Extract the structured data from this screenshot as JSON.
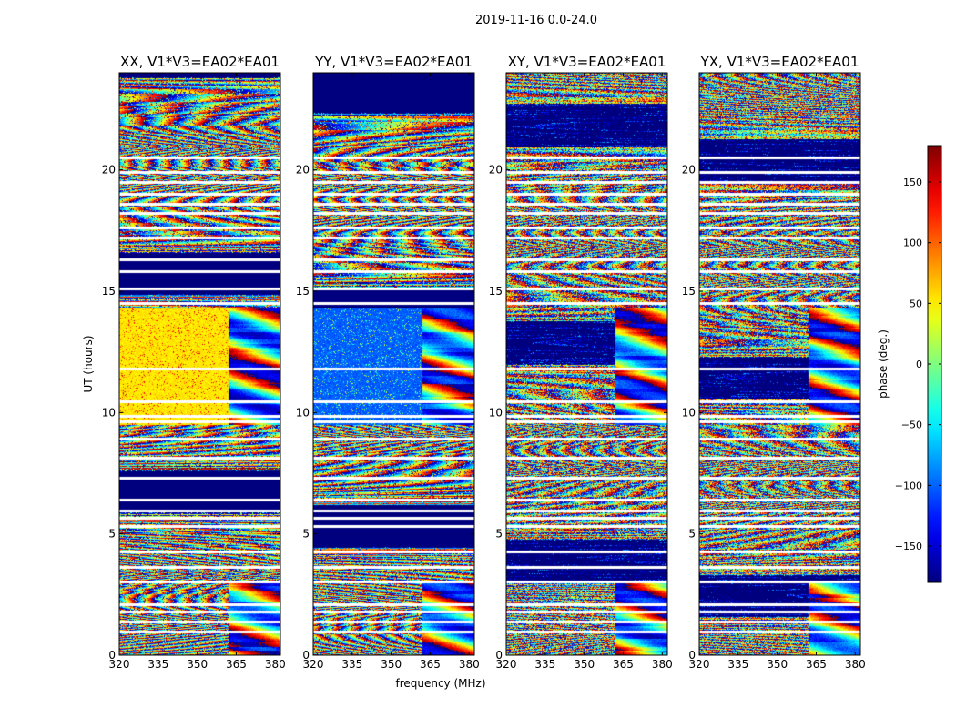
{
  "figure": {
    "suptitle": "2019-11-16 0.0-24.0"
  },
  "chart_data": {
    "type": "heatmap",
    "title": "2019-11-16 0.0-24.0",
    "xlabel": "frequency (MHz)",
    "ylabel": "UT (hours)",
    "xlim": [
      320,
      382
    ],
    "ylim": [
      0,
      24
    ],
    "x_ticks": [
      320,
      335,
      350,
      365,
      380
    ],
    "y_ticks": [
      0,
      5,
      10,
      15,
      20
    ],
    "colormap": "jet",
    "grid": false,
    "panels": [
      {
        "title": "XX, V1*V3=EA02*EA01",
        "pol": "XX"
      },
      {
        "title": "YY, V1*V3=EA02*EA01",
        "pol": "YY"
      },
      {
        "title": "XY, V1*V3=EA02*EA01",
        "pol": "XY"
      },
      {
        "title": "YX, V1*V3=EA02*EA01",
        "pol": "YX"
      }
    ],
    "colorbar": {
      "label": "phase (deg.)",
      "range": [
        -180,
        180
      ],
      "ticks": [
        -150,
        -100,
        -50,
        0,
        50,
        100,
        150
      ],
      "tick_labels": [
        "−150",
        "−100",
        "−50",
        "0",
        "50",
        "100",
        "150"
      ]
    },
    "data_gaps_ut_hours": [
      0.95,
      1.35,
      1.75,
      2.05,
      3.0,
      3.6,
      4.25,
      5.3,
      5.65,
      5.95,
      6.4,
      7.3,
      8.1,
      8.9,
      9.6,
      9.85,
      10.45,
      11.8,
      14.5,
      15.1,
      15.8,
      16.3,
      17.2,
      17.6,
      18.2,
      18.6,
      19.0,
      19.5,
      19.9,
      20.5
    ]
  }
}
